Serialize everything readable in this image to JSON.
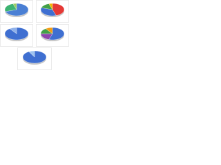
{
  "chart_data": [
    {
      "type": "pie",
      "values": [
        70,
        25,
        5
      ],
      "colors": [
        "#4a7fd4",
        "#3cb371",
        "#9ccc65"
      ]
    },
    {
      "type": "pie",
      "values": [
        45,
        35,
        15,
        5
      ],
      "colors": [
        "#e53935",
        "#3f6fd1",
        "#43a047",
        "#f4b400"
      ]
    },
    {
      "type": "pie",
      "values": [
        90,
        10
      ],
      "colors": [
        "#3f6fd1",
        "#8fb1ea"
      ]
    },
    {
      "type": "pie",
      "values": [
        55,
        20,
        15,
        10
      ],
      "colors": [
        "#3f6fd1",
        "#8e44ad",
        "#43a047",
        "#f39c12"
      ]
    },
    {
      "type": "pie",
      "values": [
        92,
        8
      ],
      "colors": [
        "#3f6fd1",
        "#9ec3f0"
      ]
    }
  ]
}
